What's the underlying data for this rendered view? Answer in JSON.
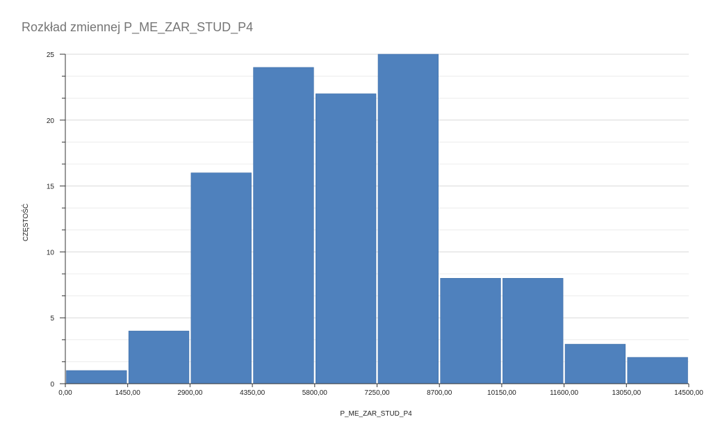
{
  "chart_data": {
    "type": "bar",
    "title": "Rozkład zmiennej P_ME_ZAR_STUD_P4",
    "xlabel": "P_ME_ZAR_STUD_P4",
    "ylabel": "CZĘSTOŚĆ",
    "bin_edges": [
      0,
      1450,
      2900,
      4350,
      5800,
      7250,
      8700,
      10150,
      11600,
      13050,
      14500
    ],
    "x_tick_labels": [
      "0,00",
      "1450,00",
      "2900,00",
      "4350,00",
      "5800,00",
      "7250,00",
      "8700,00",
      "10150,00",
      "11600,00",
      "13050,00",
      "14500,00"
    ],
    "values": [
      1,
      4,
      16,
      24,
      22,
      25,
      8,
      8,
      3,
      2
    ],
    "y_ticks": [
      0,
      5,
      10,
      15,
      20,
      25
    ],
    "ylim": [
      0,
      25
    ],
    "grid": true,
    "bar_color": "#4f81bd"
  }
}
